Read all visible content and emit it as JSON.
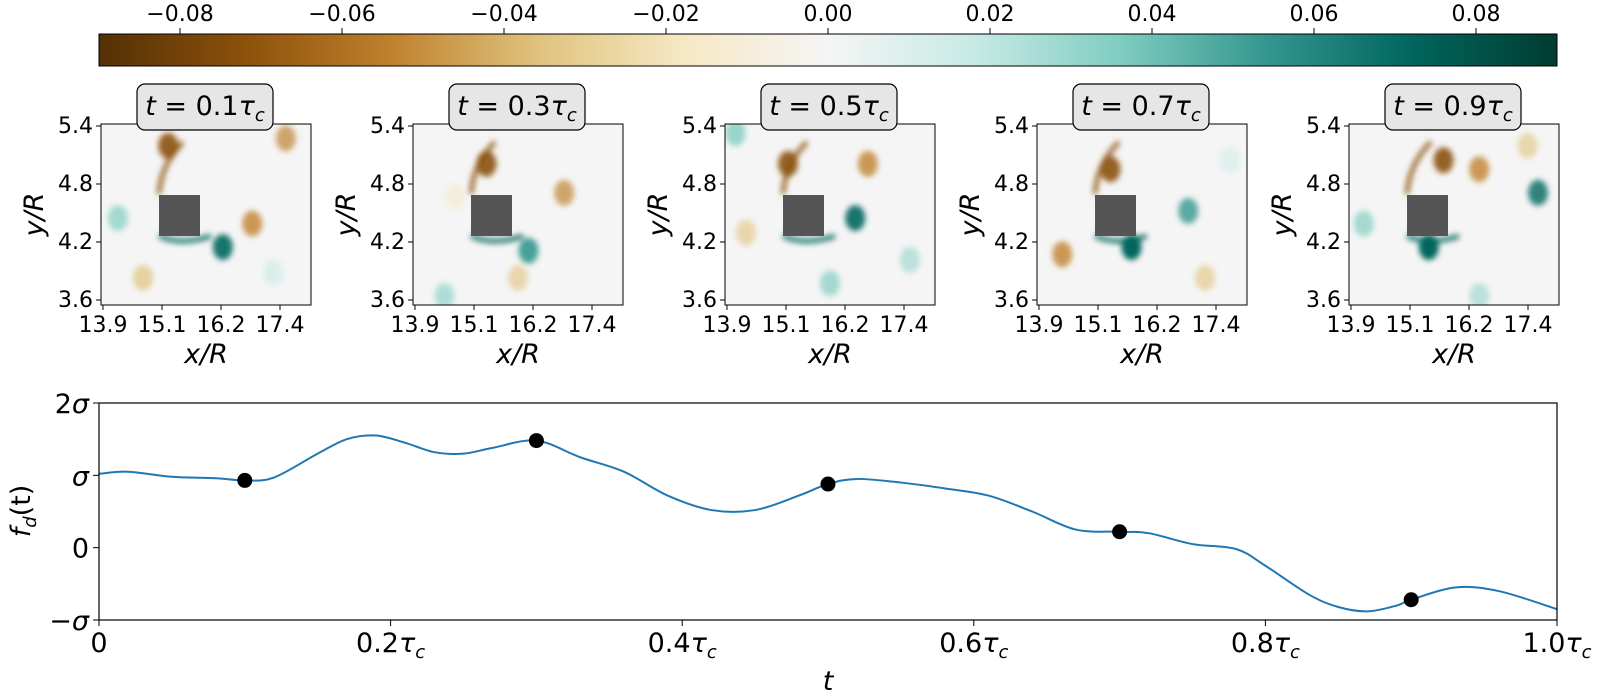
{
  "colorbar": {
    "ticks": [
      -0.08,
      -0.06,
      -0.04,
      -0.02,
      0.0,
      0.02,
      0.04,
      0.06,
      0.08
    ],
    "tick_labels": [
      "−0.08",
      "−0.06",
      "−0.04",
      "−0.02",
      "0.00",
      "0.02",
      "0.04",
      "0.06",
      "0.08"
    ],
    "range": [
      -0.09,
      0.09
    ],
    "colormap": "BrBG",
    "stops": [
      "#543005",
      "#8c510a",
      "#bf812d",
      "#dfc27d",
      "#f6e8c3",
      "#f5f5f5",
      "#c7eae5",
      "#80cdc1",
      "#35978f",
      "#01665e",
      "#003c30"
    ]
  },
  "snapshots": [
    {
      "label_prefix": "t = ",
      "label_value": "0.1",
      "label_unit": "τ",
      "label_sub": "c",
      "t": 0.1
    },
    {
      "label_prefix": "t = ",
      "label_value": "0.3",
      "label_unit": "τ",
      "label_sub": "c",
      "t": 0.3
    },
    {
      "label_prefix": "t = ",
      "label_value": "0.5",
      "label_unit": "τ",
      "label_sub": "c",
      "t": 0.5
    },
    {
      "label_prefix": "t = ",
      "label_value": "0.7",
      "label_unit": "τ",
      "label_sub": "c",
      "t": 0.7
    },
    {
      "label_prefix": "t = ",
      "label_value": "0.9",
      "label_unit": "τ",
      "label_sub": "c",
      "t": 0.9
    }
  ],
  "snapshot_axes": {
    "xlabel": "x/R",
    "ylabel": "y/R",
    "xticks": [
      "13.9",
      "15.1",
      "16.2",
      "17.4"
    ],
    "yticks": [
      "5.4",
      "4.8",
      "4.2",
      "3.6"
    ],
    "obstacle_color": "#555555"
  },
  "chart_data": {
    "type": "line",
    "xlabel": "t",
    "ylabel": "f_d(t)",
    "xlim": [
      0,
      1.0
    ],
    "ylim": [
      -1,
      2
    ],
    "x_ticks": [
      0,
      0.2,
      0.4,
      0.6,
      0.8,
      1.0
    ],
    "x_tick_labels": [
      {
        "num": "0",
        "sym": ""
      },
      {
        "num": "0.2",
        "sym": "τ"
      },
      {
        "num": "0.4",
        "sym": "τ"
      },
      {
        "num": "0.6",
        "sym": "τ"
      },
      {
        "num": "0.8",
        "sym": "τ"
      },
      {
        "num": "1.0",
        "sym": "τ"
      }
    ],
    "x_tick_sub": "c",
    "y_ticks": [
      -1,
      0,
      1,
      2
    ],
    "y_tick_labels": [
      "−σ",
      "0",
      "σ",
      "2σ"
    ],
    "series": [
      {
        "color": "#1f77b4",
        "x": [
          0,
          0.02,
          0.05,
          0.08,
          0.1,
          0.12,
          0.15,
          0.17,
          0.19,
          0.21,
          0.23,
          0.25,
          0.27,
          0.3,
          0.33,
          0.36,
          0.39,
          0.42,
          0.45,
          0.48,
          0.5,
          0.52,
          0.55,
          0.58,
          0.61,
          0.64,
          0.67,
          0.7,
          0.72,
          0.75,
          0.78,
          0.8,
          0.83,
          0.85,
          0.87,
          0.89,
          0.9,
          0.93,
          0.96,
          1.0
        ],
        "y": [
          1.02,
          1.05,
          0.98,
          0.96,
          0.93,
          0.97,
          1.3,
          1.5,
          1.55,
          1.45,
          1.32,
          1.3,
          1.38,
          1.48,
          1.25,
          1.05,
          0.72,
          0.52,
          0.52,
          0.72,
          0.88,
          0.95,
          0.9,
          0.82,
          0.72,
          0.5,
          0.25,
          0.22,
          0.2,
          0.05,
          -0.02,
          -0.25,
          -0.65,
          -0.82,
          -0.88,
          -0.8,
          -0.72,
          -0.55,
          -0.6,
          -0.85
        ]
      }
    ],
    "markers": {
      "color": "#000000",
      "x": [
        0.1,
        0.3,
        0.5,
        0.7,
        0.9
      ],
      "y": [
        0.93,
        1.48,
        0.88,
        0.22,
        -0.72
      ]
    }
  }
}
